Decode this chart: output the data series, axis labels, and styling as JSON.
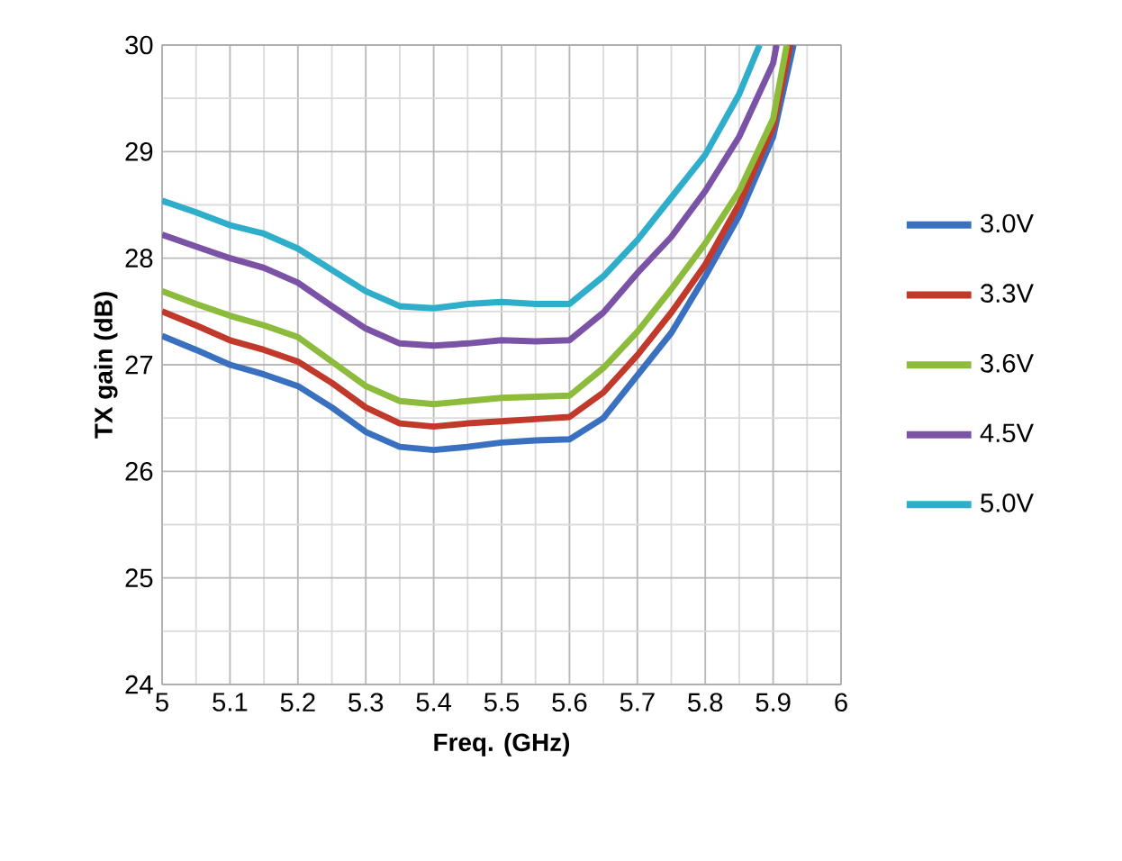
{
  "chart_data": {
    "type": "line",
    "xlabel": "Freq. (GHz)",
    "ylabel": "TX gain (dB)",
    "series": [
      {
        "name": "3.0V",
        "color": "#3a70c0",
        "x": [
          5.0,
          5.05,
          5.1,
          5.15,
          5.2,
          5.25,
          5.3,
          5.35,
          5.4,
          5.45,
          5.5,
          5.55,
          5.6,
          5.65,
          5.7,
          5.75,
          5.8,
          5.85,
          5.9,
          5.93
        ],
        "values": [
          27.27,
          27.14,
          27.0,
          26.91,
          26.8,
          26.6,
          26.37,
          26.23,
          26.2,
          26.23,
          26.27,
          26.29,
          26.3,
          26.5,
          26.9,
          27.3,
          27.83,
          28.4,
          29.14,
          30.0
        ]
      },
      {
        "name": "3.3V",
        "color": "#c0392b",
        "x": [
          5.0,
          5.05,
          5.1,
          5.15,
          5.2,
          5.25,
          5.3,
          5.35,
          5.4,
          5.45,
          5.5,
          5.55,
          5.6,
          5.65,
          5.7,
          5.75,
          5.8,
          5.85,
          5.9,
          5.925
        ],
        "values": [
          27.5,
          27.37,
          27.23,
          27.14,
          27.03,
          26.83,
          26.6,
          26.45,
          26.42,
          26.45,
          26.47,
          26.49,
          26.51,
          26.74,
          27.09,
          27.49,
          27.94,
          28.51,
          29.23,
          30.0
        ]
      },
      {
        "name": "3.6V",
        "color": "#8dbb3c",
        "x": [
          5.0,
          5.05,
          5.1,
          5.15,
          5.2,
          5.25,
          5.3,
          5.35,
          5.4,
          5.45,
          5.5,
          5.55,
          5.6,
          5.65,
          5.7,
          5.75,
          5.8,
          5.85,
          5.9,
          5.92
        ],
        "values": [
          27.69,
          27.57,
          27.46,
          27.37,
          27.26,
          27.03,
          26.8,
          26.66,
          26.63,
          26.66,
          26.69,
          26.7,
          26.71,
          26.97,
          27.31,
          27.71,
          28.14,
          28.63,
          29.31,
          30.0
        ]
      },
      {
        "name": "4.5V",
        "color": "#7b53a6",
        "x": [
          5.0,
          5.05,
          5.1,
          5.15,
          5.2,
          5.25,
          5.3,
          5.35,
          5.4,
          5.45,
          5.5,
          5.55,
          5.6,
          5.65,
          5.7,
          5.75,
          5.8,
          5.85,
          5.9,
          5.905
        ],
        "values": [
          28.22,
          28.11,
          28.0,
          27.91,
          27.77,
          27.55,
          27.34,
          27.2,
          27.18,
          27.2,
          27.23,
          27.22,
          27.23,
          27.49,
          27.86,
          28.2,
          28.63,
          29.14,
          29.83,
          30.0
        ]
      },
      {
        "name": "5.0V",
        "color": "#2eaecb",
        "x": [
          5.0,
          5.05,
          5.1,
          5.15,
          5.2,
          5.25,
          5.3,
          5.35,
          5.4,
          5.45,
          5.5,
          5.55,
          5.6,
          5.65,
          5.7,
          5.75,
          5.8,
          5.85,
          5.88
        ],
        "values": [
          28.54,
          28.43,
          28.31,
          28.23,
          28.09,
          27.89,
          27.69,
          27.55,
          27.53,
          27.57,
          27.59,
          27.57,
          27.57,
          27.83,
          28.17,
          28.57,
          28.97,
          29.54,
          30.0
        ]
      }
    ],
    "xlim": [
      5,
      6
    ],
    "xticks": [
      5,
      5.1,
      5.2,
      5.3,
      5.4,
      5.5,
      5.6,
      5.7,
      5.8,
      5.9,
      6
    ],
    "ylim": [
      24,
      30
    ],
    "yticks": [
      24,
      25,
      26,
      27,
      28,
      29,
      30
    ],
    "grid": true,
    "legend": "right",
    "marker": "none",
    "line_style": "solid"
  }
}
